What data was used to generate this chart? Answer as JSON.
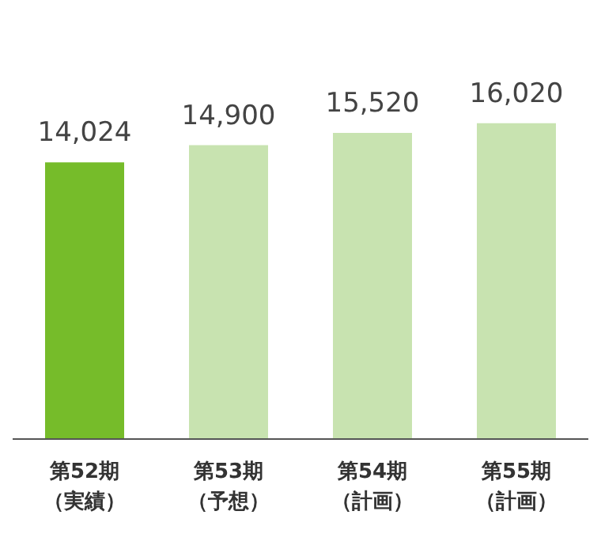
{
  "chart_data": {
    "type": "bar",
    "categories": [
      "第52期（実績）",
      "第53期（予想）",
      "第54期（計画）",
      "第55期（計画）"
    ],
    "values": [
      14024,
      14900,
      15520,
      16020
    ],
    "value_labels": [
      "14,024",
      "14,900",
      "15,520",
      "16,020"
    ],
    "colors": [
      "#76bc2a",
      "#c8e3b0",
      "#c8e3b0",
      "#c8e3b0"
    ]
  }
}
